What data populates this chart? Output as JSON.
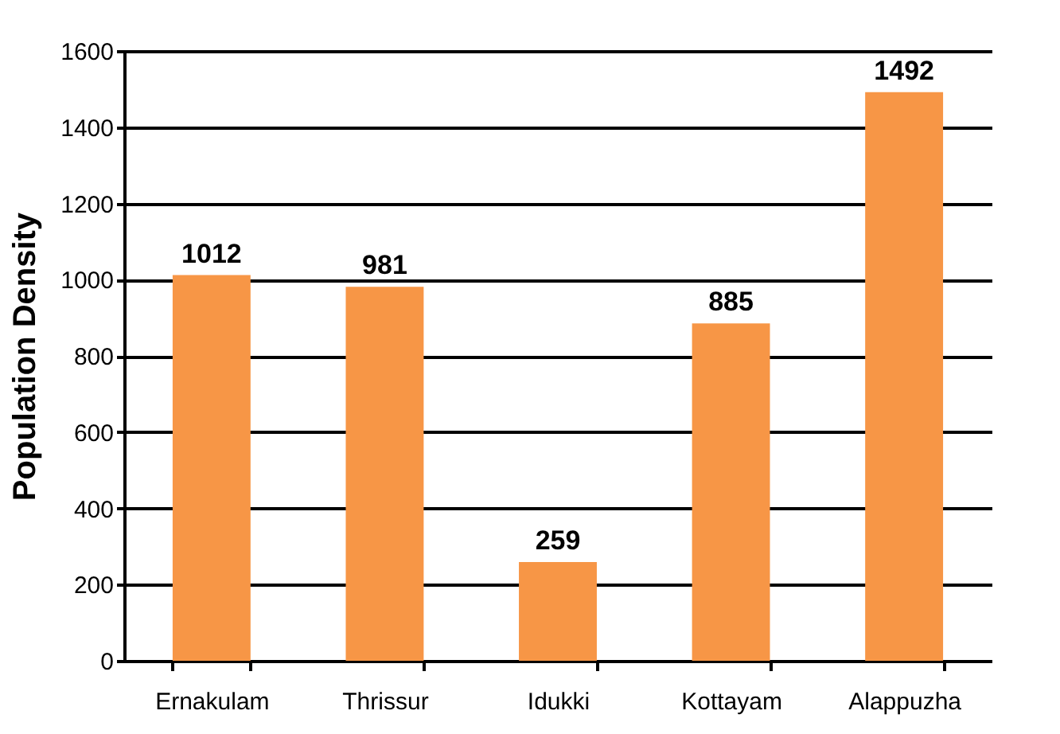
{
  "chart_data": {
    "type": "bar",
    "ylabel": "Population Density",
    "categories": [
      "Ernakulam",
      "Thrissur",
      "Idukki",
      "Kottayam",
      "Alappuzha"
    ],
    "values": [
      1012,
      981,
      259,
      885,
      1492
    ],
    "color": "#f79646",
    "ylim": [
      0,
      1600
    ],
    "yticks": [
      0,
      200,
      400,
      600,
      800,
      1000,
      1200,
      1400,
      1600
    ],
    "grid": "y",
    "data_labels": true
  }
}
